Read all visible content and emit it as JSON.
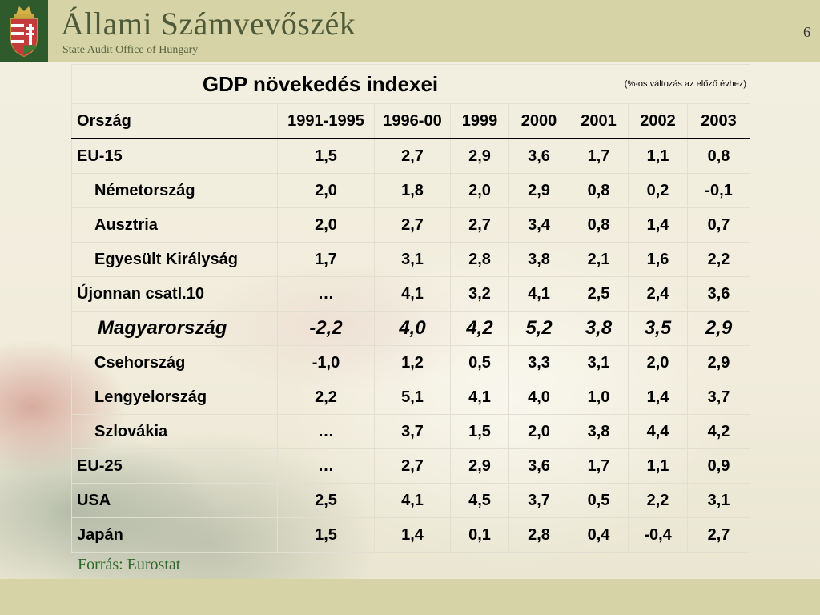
{
  "header": {
    "title": "Állami Számvevőszék",
    "subtitle": "State Audit Office of Hungary",
    "page_number": "6"
  },
  "table": {
    "title": "GDP növekedés indexei",
    "note": "(%-os változás az előző évhez)",
    "columns": [
      "Ország",
      "1991-1995",
      "1996-00",
      "1999",
      "2000",
      "2001",
      "2002",
      "2003"
    ],
    "rows": [
      {
        "country": "EU-15",
        "indent": false,
        "values": [
          "1,5",
          "2,7",
          "2,9",
          "3,6",
          "1,7",
          "1,1",
          "0,8"
        ]
      },
      {
        "country": "Németország",
        "indent": true,
        "values": [
          "2,0",
          "1,8",
          "2,0",
          "2,9",
          "0,8",
          "0,2",
          "-0,1"
        ]
      },
      {
        "country": "Ausztria",
        "indent": true,
        "values": [
          "2,0",
          "2,7",
          "2,7",
          "3,4",
          "0,8",
          "1,4",
          "0,7"
        ]
      },
      {
        "country": "Egyesült Királyság",
        "indent": true,
        "values": [
          "1,7",
          "3,1",
          "2,8",
          "3,8",
          "2,1",
          "1,6",
          "2,2"
        ]
      },
      {
        "country": "Újonnan csatl.10",
        "indent": false,
        "values": [
          "…",
          "4,1",
          "3,2",
          "4,1",
          "2,5",
          "2,4",
          "3,6"
        ]
      },
      {
        "country": "Magyarország",
        "indent": true,
        "highlight": true,
        "values": [
          "-2,2",
          "4,0",
          "4,2",
          "5,2",
          "3,8",
          "3,5",
          "2,9"
        ]
      },
      {
        "country": "Csehország",
        "indent": true,
        "values": [
          "-1,0",
          "1,2",
          "0,5",
          "3,3",
          "3,1",
          "2,0",
          "2,9"
        ]
      },
      {
        "country": "Lengyelország",
        "indent": true,
        "values": [
          "2,2",
          "5,1",
          "4,1",
          "4,0",
          "1,0",
          "1,4",
          "3,7"
        ]
      },
      {
        "country": "Szlovákia",
        "indent": true,
        "values": [
          "…",
          "3,7",
          "1,5",
          "2,0",
          "3,8",
          "4,4",
          "4,2"
        ]
      },
      {
        "country": "EU-25",
        "indent": false,
        "values": [
          "…",
          "2,7",
          "2,9",
          "3,6",
          "1,7",
          "1,1",
          "0,9"
        ]
      },
      {
        "country": "USA",
        "indent": false,
        "values": [
          "2,5",
          "4,1",
          "4,5",
          "3,7",
          "0,5",
          "2,2",
          "3,1"
        ]
      },
      {
        "country": "Japán",
        "indent": false,
        "values": [
          "1,5",
          "1,4",
          "0,1",
          "2,8",
          "0,4",
          "-0,4",
          "2,7"
        ]
      }
    ]
  },
  "source": "Forrás: Eurostat",
  "colors": {
    "header_band": "#d6d4a6",
    "crest_bg": "#2f5a2c",
    "source_text": "#2f6a2a"
  }
}
